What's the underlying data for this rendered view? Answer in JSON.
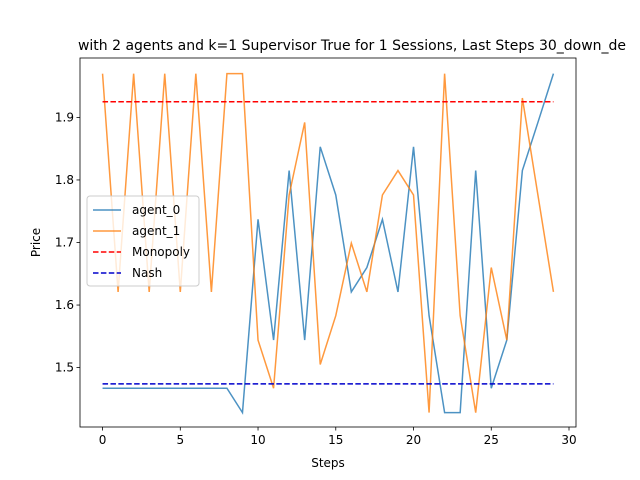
{
  "chart_data": {
    "type": "line",
    "title": "with 2 agents and k=1 Supervisor True for 1 Sessions, Last Steps 30_down_de",
    "xlabel": "Steps",
    "ylabel": "Price",
    "xlim": [
      -1.45,
      30.45
    ],
    "ylim": [
      1.405,
      1.995
    ],
    "xticks": [
      0,
      5,
      10,
      15,
      20,
      25,
      30
    ],
    "yticks": [
      1.5,
      1.6,
      1.7,
      1.8,
      1.9
    ],
    "legend_position": "center-left",
    "grid": false,
    "series": [
      {
        "name": "agent_0",
        "color": "#1f77b4",
        "x": [
          0,
          1,
          2,
          3,
          4,
          5,
          6,
          7,
          8,
          9,
          10,
          11,
          12,
          13,
          14,
          15,
          16,
          17,
          18,
          19,
          20,
          21,
          22,
          23,
          24,
          25,
          26,
          27,
          28,
          29
        ],
        "values": [
          1.467,
          1.467,
          1.467,
          1.467,
          1.467,
          1.467,
          1.467,
          1.467,
          1.467,
          1.428,
          1.737,
          1.544,
          1.815,
          1.544,
          1.853,
          1.776,
          1.621,
          1.66,
          1.737,
          1.621,
          1.853,
          1.583,
          1.428,
          1.428,
          1.815,
          1.467,
          1.544,
          1.815,
          1.892,
          1.97
        ]
      },
      {
        "name": "agent_1",
        "color": "#ff7f0e",
        "x": [
          0,
          1,
          2,
          3,
          4,
          5,
          6,
          7,
          8,
          9,
          10,
          11,
          12,
          13,
          14,
          15,
          16,
          17,
          18,
          19,
          20,
          21,
          22,
          23,
          24,
          25,
          26,
          27,
          28,
          29
        ],
        "values": [
          1.97,
          1.621,
          1.97,
          1.621,
          1.97,
          1.621,
          1.97,
          1.621,
          1.97,
          1.97,
          1.544,
          1.467,
          1.776,
          1.892,
          1.505,
          1.583,
          1.699,
          1.621,
          1.776,
          1.815,
          1.776,
          1.428,
          1.97,
          1.583,
          1.428,
          1.66,
          1.544,
          1.931,
          1.776,
          1.621
        ]
      },
      {
        "name": "Monopoly",
        "color": "#ff0000",
        "dashed": true,
        "x": [
          0,
          29
        ],
        "values": [
          1.925,
          1.925
        ]
      },
      {
        "name": "Nash",
        "color": "#0000cc",
        "dashed": true,
        "x": [
          0,
          29
        ],
        "values": [
          1.474,
          1.474
        ]
      }
    ]
  }
}
